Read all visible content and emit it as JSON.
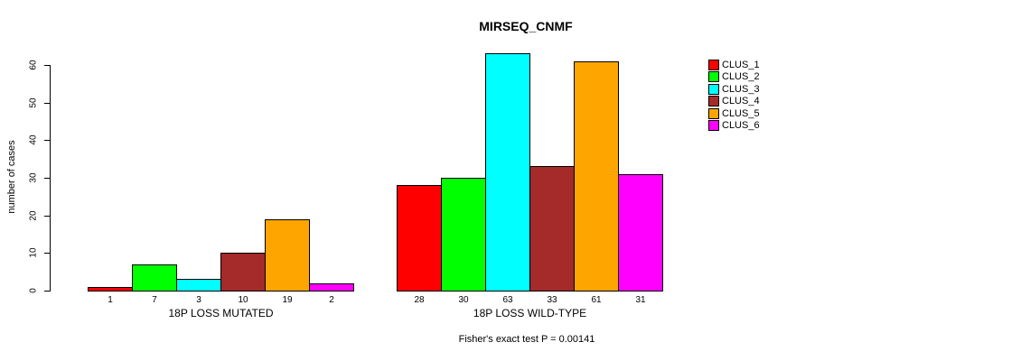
{
  "page": {
    "background_color": "#FFFFFF",
    "text_color": "#000000"
  },
  "chart": {
    "title": "MIRSEQ_CNMF",
    "y_axis_label": "number of cases",
    "footer": "Fisher's exact test P = 0.00141"
  },
  "chart_data": {
    "type": "bar",
    "title": "MIRSEQ_CNMF",
    "xlabel": "",
    "ylabel": "number of cases",
    "ylim": [
      0,
      60
    ],
    "yticks": [
      0,
      10,
      20,
      30,
      40,
      50,
      60
    ],
    "grid": false,
    "bar_borders": "#000000",
    "bar_value_labels_shown": true,
    "legend_position": "top-right",
    "annotation": "Fisher's exact test P = 0.00141",
    "categories": [
      "18P LOSS MUTATED",
      "18P LOSS WILD-TYPE"
    ],
    "series": [
      {
        "name": "CLUS_1",
        "color": "#FF0000",
        "values": [
          1,
          28
        ]
      },
      {
        "name": "CLUS_2",
        "color": "#00FF00",
        "values": [
          7,
          30
        ]
      },
      {
        "name": "CLUS_3",
        "color": "#00FFFF",
        "values": [
          3,
          63
        ]
      },
      {
        "name": "CLUS_4",
        "color": "#A52A2A",
        "values": [
          10,
          33
        ]
      },
      {
        "name": "CLUS_5",
        "color": "#FFA500",
        "values": [
          19,
          61
        ]
      },
      {
        "name": "CLUS_6",
        "color": "#FF00FF",
        "values": [
          2,
          31
        ]
      }
    ]
  }
}
